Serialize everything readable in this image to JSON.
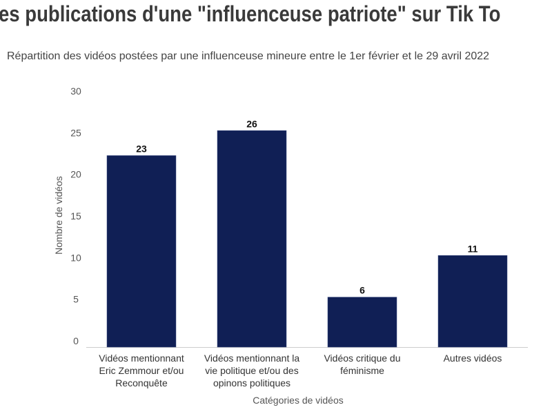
{
  "chart_data": {
    "type": "bar",
    "title": "es publications d'une \"influenceuse patriote\" sur Tik To",
    "subtitle": "Répartition des vidéos postées par une influenceuse mineure entre le 1er février et le 29 avril 2022",
    "xlabel": "Catégories de vidéos",
    "ylabel": "Nombre de vidéos",
    "categories": [
      [
        "Vidéos mentionnant",
        "Eric Zemmour et/ou",
        "Reconquête"
      ],
      [
        "Vidéos mentionnant la",
        "vie politique et/ou des",
        "opinons politiques"
      ],
      [
        "Vidéos critique du",
        "féminisme"
      ],
      [
        "Autres vidéos"
      ]
    ],
    "values": [
      23,
      26,
      6,
      11
    ],
    "ylim": [
      0,
      30
    ],
    "yticks": [
      "0",
      "5",
      "10",
      "15",
      "20",
      "25",
      "30"
    ],
    "grid": false,
    "legend": "none",
    "bar_color": "#101f55"
  }
}
